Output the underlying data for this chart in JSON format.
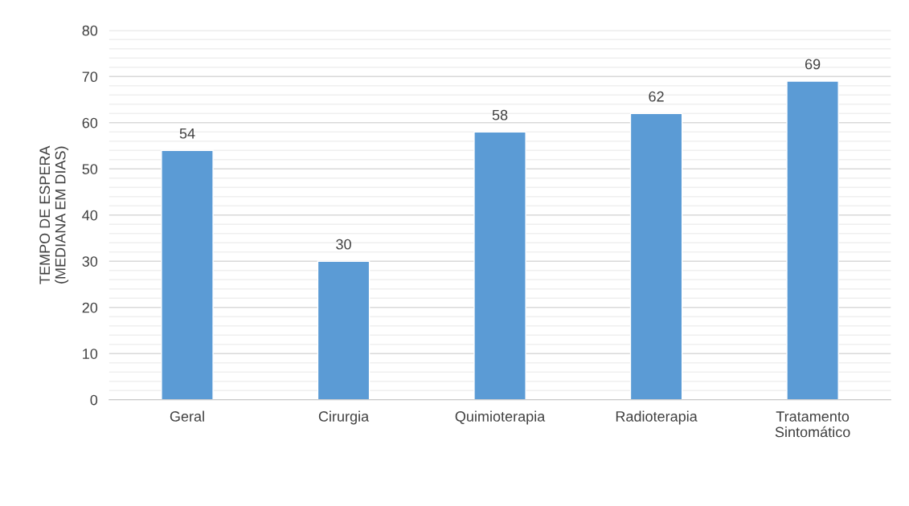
{
  "chart_data": {
    "type": "bar",
    "ylabel": "TEMPO DE ESPERA\n(MEDIANA EM DIAS)",
    "categories": [
      "Geral",
      "Cirurgia",
      "Quimioterapia",
      "Radioterapia",
      "Tratamento Sintomático"
    ],
    "values": [
      54,
      30,
      58,
      62,
      69
    ],
    "color": "#5b9bd5",
    "data_labels": true,
    "ylim": [
      0,
      80
    ],
    "yticks": [
      0,
      {
        "value": 2,
        "label": null
      },
      {
        "value": 4,
        "label": null
      },
      {
        "value": 6,
        "label": null
      },
      {
        "value": 8,
        "label": null
      },
      10,
      {
        "value": 12,
        "label": null
      },
      {
        "value": 14,
        "label": null
      },
      {
        "value": 16,
        "label": null
      },
      {
        "value": 18,
        "label": null
      },
      20,
      {
        "value": 22,
        "label": null
      },
      {
        "value": 24,
        "label": null
      },
      {
        "value": 26,
        "label": null
      },
      {
        "value": 28,
        "label": null
      },
      30,
      {
        "value": 32,
        "label": null
      },
      {
        "value": 34,
        "label": null
      },
      {
        "value": 36,
        "label": null
      },
      {
        "value": 38,
        "label": null
      },
      40,
      {
        "value": 42,
        "label": null
      },
      {
        "value": 44,
        "label": null
      },
      {
        "value": 46,
        "label": null
      },
      {
        "value": 48,
        "label": null
      },
      50,
      {
        "value": 52,
        "label": null
      },
      {
        "value": 54,
        "label": null
      },
      {
        "value": 56,
        "label": null
      },
      {
        "value": 58,
        "label": null
      },
      60,
      {
        "value": 62,
        "label": null
      },
      {
        "value": 64,
        "label": null
      },
      {
        "value": 66,
        "label": null
      },
      {
        "value": 68,
        "label": null
      },
      70,
      {
        "value": 72,
        "label": null
      },
      {
        "value": 74,
        "label": null
      },
      {
        "value": 76,
        "label": null
      },
      {
        "value": 78,
        "label": null
      },
      80
    ],
    "grid": "y"
  }
}
